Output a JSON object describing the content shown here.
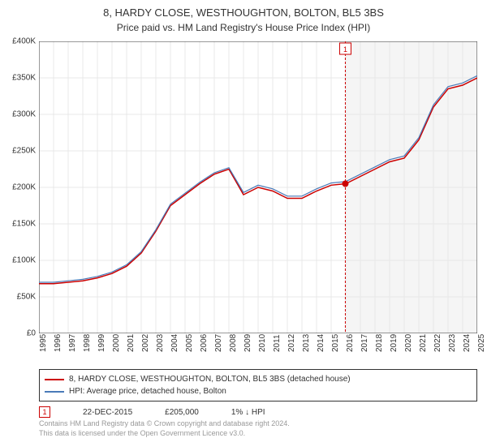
{
  "title": "8, HARDY CLOSE, WESTHOUGHTON, BOLTON, BL5 3BS",
  "subtitle": "Price paid vs. HM Land Registry's House Price Index (HPI)",
  "chart": {
    "type": "line",
    "background_color": "#ffffff",
    "grid_color": "#e8e8e8",
    "axis_color": "#333333",
    "future_band_color": "#f5f5f5",
    "ylim": [
      0,
      400000
    ],
    "ytick_step": 50000,
    "yticks": [
      "£0",
      "£50K",
      "£100K",
      "£150K",
      "£200K",
      "£250K",
      "£300K",
      "£350K",
      "£400K"
    ],
    "x_years": [
      1995,
      1996,
      1997,
      1998,
      1999,
      2000,
      2001,
      2002,
      2003,
      2004,
      2005,
      2006,
      2007,
      2008,
      2009,
      2010,
      2011,
      2012,
      2013,
      2014,
      2015,
      2016,
      2017,
      2018,
      2019,
      2020,
      2021,
      2022,
      2023,
      2024,
      2025
    ],
    "series": [
      {
        "name": "property",
        "label": "8, HARDY CLOSE, WESTHOUGHTON, BOLTON, BL5 3BS (detached house)",
        "color": "#cc0000",
        "line_width": 1.5,
        "values": [
          68000,
          68000,
          70000,
          72000,
          76000,
          82000,
          92000,
          110000,
          140000,
          175000,
          190000,
          205000,
          218000,
          225000,
          190000,
          200000,
          195000,
          185000,
          185000,
          195000,
          203000,
          205000,
          215000,
          225000,
          235000,
          240000,
          265000,
          310000,
          335000,
          340000,
          350000
        ]
      },
      {
        "name": "hpi",
        "label": "HPI: Average price, detached house, Bolton",
        "color": "#4a7ab8",
        "line_width": 1.2,
        "values": [
          70000,
          70000,
          72000,
          74000,
          78000,
          84000,
          94000,
          112000,
          142000,
          177000,
          192000,
          207000,
          220000,
          227000,
          193000,
          203000,
          198000,
          188000,
          188000,
          198000,
          206000,
          208000,
          218000,
          228000,
          238000,
          243000,
          268000,
          313000,
          338000,
          343000,
          353000
        ]
      }
    ],
    "marker": {
      "badge": "1",
      "badge_border": "#cc0000",
      "badge_text_color": "#cc0000",
      "dot_color": "#cc0000",
      "year": 2015.97,
      "value": 205000,
      "vline_color": "#cc0000",
      "vline_dash": "3,2"
    },
    "title_fontsize": 13,
    "subtitle_fontsize": 12,
    "tick_fontsize": 10
  },
  "legend": {
    "items": [
      {
        "color": "#cc0000",
        "bind": "chart.series.0.label"
      },
      {
        "color": "#4a7ab8",
        "bind": "chart.series.1.label"
      }
    ]
  },
  "marker_row": {
    "badge": "1",
    "date": "22-DEC-2015",
    "price": "£205,000",
    "delta": "1% ↓ HPI"
  },
  "footer": {
    "line1": "Contains HM Land Registry data © Crown copyright and database right 2024.",
    "line2": "This data is licensed under the Open Government Licence v3.0."
  }
}
